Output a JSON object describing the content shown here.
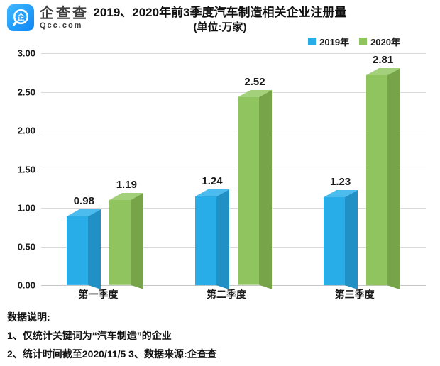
{
  "logo": {
    "name": "企查查",
    "domain": "Qcc.com",
    "brand_color": "#1E9AFF",
    "glyph": "企"
  },
  "header": {
    "title": "2019、2020年前3季度汽车制造相关企业注册量",
    "subtitle": "(单位:万家)"
  },
  "chart_data": {
    "type": "bar",
    "style": "3d-clustered-column",
    "title": "2019、2020年前3季度汽车制造相关企业注册量",
    "subtitle": "(单位:万家)",
    "unit": "万家",
    "categories": [
      "第一季度",
      "第二季度",
      "第三季度"
    ],
    "category_keys": [
      "q1",
      "q2",
      "q3"
    ],
    "series": [
      {
        "name": "2019年",
        "key": "2019",
        "values": [
          0.98,
          1.24,
          1.23
        ],
        "color": "#29ADE8",
        "color_top": "#4CBCEE",
        "color_side": "#2190C4"
      },
      {
        "name": "2020年",
        "key": "2020",
        "values": [
          1.19,
          2.52,
          2.81
        ],
        "color": "#8FC45E",
        "color_top": "#A3D07A",
        "color_side": "#78A449"
      }
    ],
    "ylim": [
      0,
      3
    ],
    "yticks": [
      "0.00",
      "0.50",
      "1.00",
      "1.50",
      "2.00",
      "2.50",
      "3.00"
    ],
    "grid": true,
    "gridline_color": "#d9d9d9",
    "legend_position": "top-right",
    "value_label_decimals": 2
  },
  "footnotes": {
    "heading": "数据说明:",
    "line1": "1、仅统计关键词为“汽车制造”的企业",
    "line2": "2、统计时间截至2020/11/5  3、数据来源:企查查"
  }
}
